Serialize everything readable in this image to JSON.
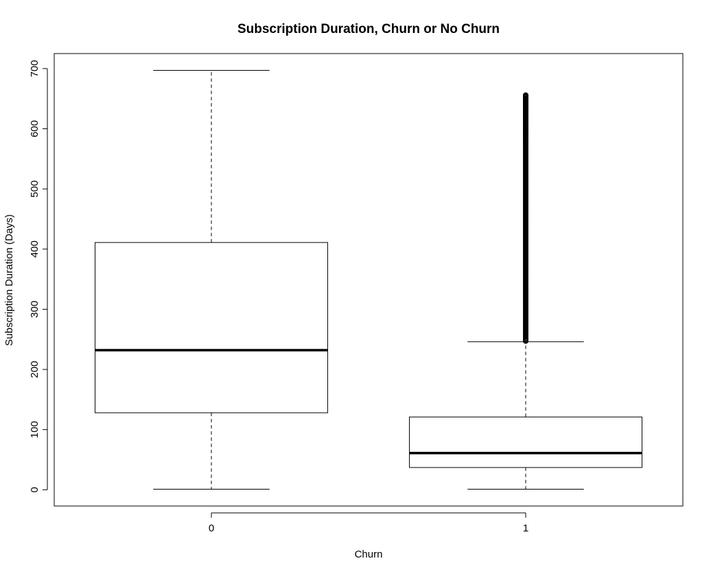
{
  "chart_data": {
    "type": "boxplot",
    "title": "Subscription Duration, Churn or No Churn",
    "xlabel": "Churn",
    "ylabel": "Subscription Duration (Days)",
    "categories": [
      "0",
      "1"
    ],
    "ylim": [
      -27,
      725
    ],
    "yticks": [
      0,
      100,
      200,
      300,
      400,
      500,
      600,
      700
    ],
    "grid": false,
    "boxes": [
      {
        "category": "0",
        "whisker_low": 1,
        "q1": 128,
        "median": 232,
        "q3": 411,
        "whisker_high": 697,
        "outliers": []
      },
      {
        "category": "1",
        "whisker_low": 1,
        "q1": 37,
        "median": 61,
        "q3": 121,
        "whisker_high": 246,
        "outlier_range": [
          247,
          656
        ],
        "outliers": [
          505,
          515,
          580,
          585,
          590,
          595,
          600,
          605,
          610,
          615,
          620,
          625,
          630,
          635,
          640,
          645,
          650,
          652,
          654,
          656
        ]
      }
    ]
  }
}
